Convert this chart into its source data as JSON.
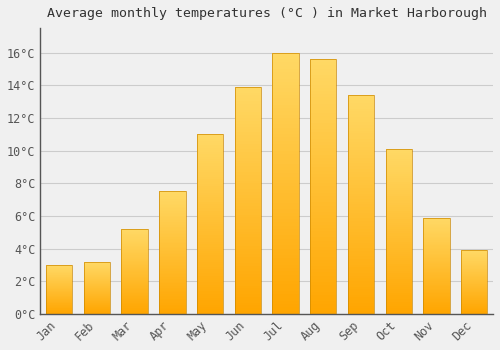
{
  "title": "Average monthly temperatures (°C ) in Market Harborough",
  "months": [
    "Jan",
    "Feb",
    "Mar",
    "Apr",
    "May",
    "Jun",
    "Jul",
    "Aug",
    "Sep",
    "Oct",
    "Nov",
    "Dec"
  ],
  "temperatures": [
    3.0,
    3.2,
    5.2,
    7.5,
    11.0,
    13.9,
    16.0,
    15.6,
    13.4,
    10.1,
    5.9,
    3.9
  ],
  "bar_color_bottom": "#FFA500",
  "bar_color_top": "#FFD966",
  "bar_edge_color": "#CC8800",
  "ylim": [
    0,
    17.5
  ],
  "yticks": [
    0,
    2,
    4,
    6,
    8,
    10,
    12,
    14,
    16
  ],
  "ytick_labels": [
    "0°C",
    "2°C",
    "4°C",
    "6°C",
    "8°C",
    "10°C",
    "12°C",
    "14°C",
    "16°C"
  ],
  "background_color": "#F0F0F0",
  "grid_color": "#CCCCCC",
  "title_fontsize": 9.5,
  "tick_fontsize": 8.5,
  "font_family": "monospace"
}
